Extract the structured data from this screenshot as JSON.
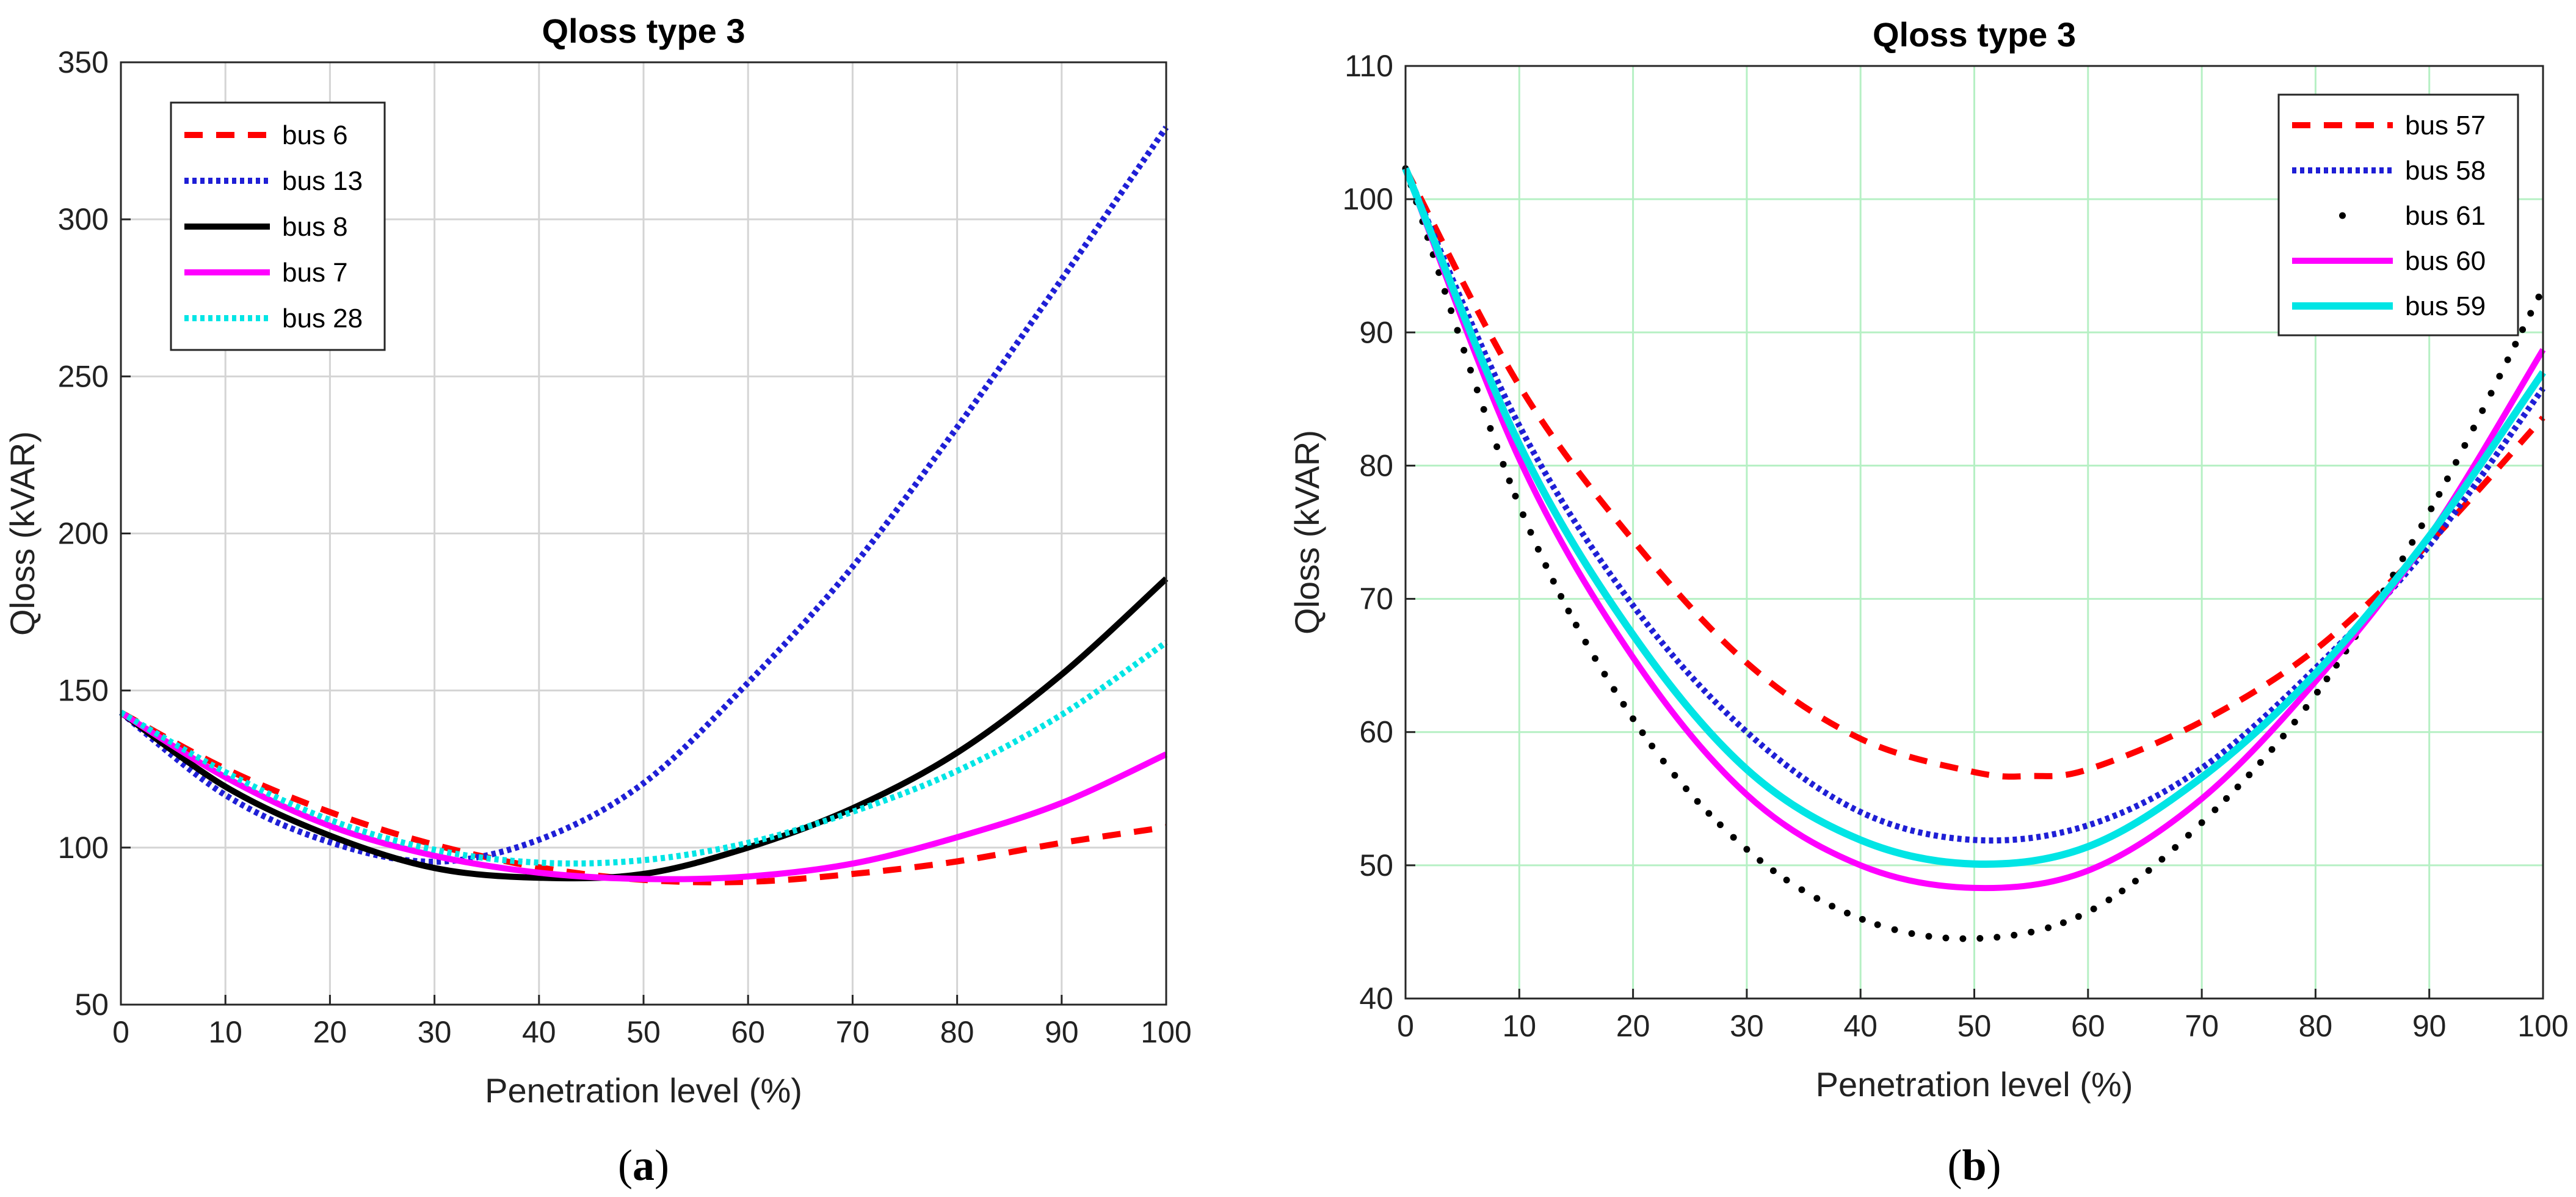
{
  "chart_data": [
    {
      "type": "line",
      "panel": "a",
      "caption_prefix": "(",
      "caption_letter": "a",
      "caption_suffix": ")",
      "title": "Qloss type 3",
      "xlabel": "Penetration level (%)",
      "ylabel": "Qloss (kVAR)",
      "xlim": [
        0,
        100
      ],
      "ylim": [
        50,
        350
      ],
      "xticks": [
        0,
        10,
        20,
        30,
        40,
        50,
        60,
        70,
        80,
        90,
        100
      ],
      "yticks": [
        50,
        100,
        150,
        200,
        250,
        300,
        350
      ],
      "grid": true,
      "grid_color": "#d4d4d4",
      "legend_position": "top-left",
      "series": [
        {
          "name": "bus 6",
          "color": "#ff0000",
          "style": "dashed",
          "width": 10,
          "x": [
            0,
            10,
            20,
            30,
            40,
            50,
            60,
            70,
            80,
            90,
            100
          ],
          "y": [
            143,
            125.1,
            111.3,
            100.9,
            93.7,
            89.7,
            89.1,
            91.6,
            95.6,
            101.5,
            106.5
          ]
        },
        {
          "name": "bus 13",
          "color": "#1f1fd6",
          "style": "dotted",
          "width": 10,
          "x": [
            0,
            10,
            20,
            30,
            40,
            50,
            60,
            70,
            80,
            90,
            100
          ],
          "y": [
            143,
            116.7,
            101.7,
            95.5,
            102.5,
            120.5,
            152.5,
            189.4,
            233.8,
            280.9,
            329.3
          ]
        },
        {
          "name": "bus 8",
          "color": "#000000",
          "style": "solid",
          "width": 10,
          "x": [
            0,
            10,
            20,
            30,
            40,
            50,
            60,
            70,
            80,
            90,
            100
          ],
          "y": [
            143,
            119.4,
            103.8,
            93.5,
            90.4,
            91.6,
            100.0,
            112.5,
            130.2,
            155.1,
            185.6
          ]
        },
        {
          "name": "bus 7",
          "color": "#ff00ff",
          "style": "solid",
          "width": 10,
          "x": [
            0,
            10,
            20,
            30,
            40,
            50,
            60,
            70,
            80,
            90,
            100
          ],
          "y": [
            143,
            122.4,
            106.9,
            97.4,
            92.0,
            90.0,
            90.8,
            94.9,
            103.3,
            114.2,
            129.7
          ]
        },
        {
          "name": "bus 28",
          "color": "#00e5e5",
          "style": "dotted",
          "width": 10,
          "x": [
            0,
            10,
            20,
            30,
            40,
            50,
            60,
            70,
            80,
            90,
            100
          ],
          "y": [
            143,
            124.0,
            108.8,
            99.3,
            95.2,
            96.0,
            101.5,
            111.4,
            124.4,
            142.3,
            165.3
          ]
        }
      ]
    },
    {
      "type": "line",
      "panel": "b",
      "caption_prefix": "(",
      "caption_letter": "b",
      "caption_suffix": ")",
      "title": "Qloss type 3",
      "xlabel": "Penetration level (%)",
      "ylabel": "Qloss (kVAR)",
      "xlim": [
        0,
        100
      ],
      "ylim": [
        40,
        110
      ],
      "xticks": [
        0,
        10,
        20,
        30,
        40,
        50,
        60,
        70,
        80,
        90,
        100
      ],
      "yticks": [
        40,
        50,
        60,
        70,
        80,
        90,
        100,
        110
      ],
      "grid": true,
      "grid_color": "#b6f0c4",
      "legend_position": "top-right",
      "series": [
        {
          "name": "bus 57",
          "color": "#ff0000",
          "style": "dashed",
          "width": 10,
          "x": [
            0,
            10,
            20,
            30,
            40,
            50,
            55,
            60,
            70,
            80,
            90,
            100
          ],
          "y": [
            102.3,
            86.0,
            74.4,
            65.2,
            59.5,
            57.0,
            56.7,
            57.2,
            60.8,
            66.2,
            74.2,
            83.6
          ]
        },
        {
          "name": "bus 58",
          "color": "#1f1fd6",
          "style": "dotted",
          "width": 10,
          "x": [
            0,
            10,
            20,
            30,
            40,
            50,
            60,
            70,
            80,
            90,
            100
          ],
          "y": [
            102.3,
            83.0,
            69.5,
            60.0,
            54.0,
            51.9,
            53.0,
            57.3,
            64.8,
            74.0,
            85.8
          ]
        },
        {
          "name": "bus 61",
          "color": "#000000",
          "style": "sparse-dots",
          "width": 10,
          "x": [
            0,
            10,
            20,
            30,
            40,
            50,
            60,
            70,
            80,
            90,
            100
          ],
          "y": [
            102.3,
            77.0,
            61.0,
            51.2,
            46.0,
            44.5,
            46.5,
            53.2,
            62.8,
            76.5,
            93.3
          ]
        },
        {
          "name": "bus 60",
          "color": "#ff00ff",
          "style": "solid",
          "width": 10,
          "x": [
            0,
            10,
            20,
            30,
            40,
            50,
            60,
            70,
            80,
            90,
            100
          ],
          "y": [
            102.3,
            80.5,
            65.6,
            55.3,
            50.0,
            48.3,
            49.6,
            55.0,
            63.8,
            74.7,
            88.7
          ]
        },
        {
          "name": "bus 59",
          "color": "#00e5e5",
          "style": "solid",
          "width": 12,
          "x": [
            0,
            10,
            20,
            30,
            40,
            50,
            60,
            70,
            80,
            90,
            100
          ],
          "y": [
            102.3,
            81.6,
            67.3,
            57.2,
            51.9,
            50.1,
            51.4,
            56.6,
            64.4,
            74.7,
            87.0
          ]
        }
      ]
    }
  ]
}
